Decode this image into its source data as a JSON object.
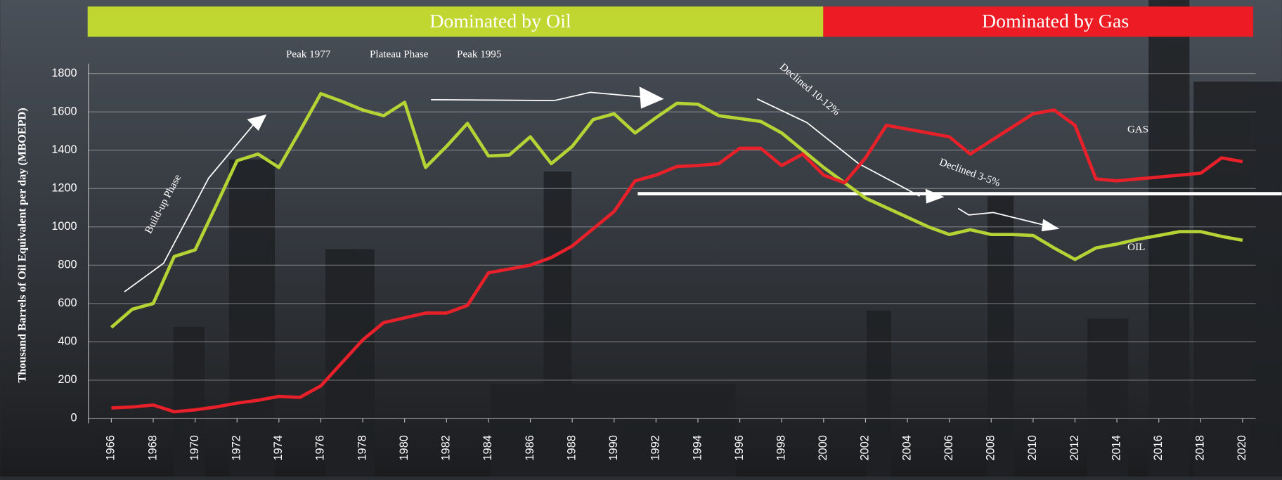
{
  "chart_data": {
    "type": "line",
    "banners": [
      "Dominated by Oil",
      "Dominated by Gas"
    ],
    "annotations": [
      "Peak 1977",
      "Plateau Phase",
      "Peak 1995",
      "Build-up Phase",
      "Declined 10-12%",
      "Declined 3-5%"
    ],
    "ylabel": "Thousand Barrels of Oil Equivalent per day (MBOEPD)",
    "x": [
      1966,
      1967,
      1968,
      1969,
      1970,
      1971,
      1972,
      1973,
      1974,
      1975,
      1976,
      1977,
      1978,
      1979,
      1980,
      1981,
      1982,
      1983,
      1984,
      1985,
      1986,
      1987,
      1988,
      1989,
      1990,
      1991,
      1992,
      1993,
      1994,
      1995,
      1996,
      1997,
      1998,
      1999,
      2000,
      2001,
      2002,
      2003,
      2004,
      2005,
      2006,
      2007,
      2008,
      2009,
      2010,
      2011,
      2012,
      2013,
      2014,
      2015,
      2016,
      2017,
      2018,
      2019,
      2020
    ],
    "xlim": [
      1966,
      2020
    ],
    "xticks": [
      1966,
      1968,
      1970,
      1972,
      1974,
      1976,
      1978,
      1980,
      1982,
      1984,
      1986,
      1988,
      1990,
      1992,
      1994,
      1996,
      1998,
      2000,
      2002,
      2004,
      2006,
      2008,
      2010,
      2012,
      2014,
      2016,
      2018,
      2020
    ],
    "ylim": [
      0,
      1800
    ],
    "yticks": [
      0,
      200,
      400,
      600,
      800,
      1000,
      1200,
      1400,
      1600,
      1800
    ],
    "grid": true,
    "series": [
      {
        "name": "OIL",
        "color": "#b5d334",
        "values": [
          475,
          570,
          600,
          845,
          880,
          1110,
          1345,
          1380,
          1310,
          1500,
          1695,
          1655,
          1610,
          1580,
          1650,
          1310,
          1420,
          1540,
          1370,
          1375,
          1470,
          1330,
          1420,
          1560,
          1590,
          1490,
          1570,
          1645,
          1640,
          1580,
          1565,
          1550,
          1490,
          1400,
          1310,
          1230,
          1150,
          1100,
          1050,
          1000,
          960,
          985,
          960,
          960,
          955,
          890,
          830,
          890,
          910,
          935,
          955,
          975,
          975,
          950,
          930
        ]
      },
      {
        "name": "GAS",
        "color": "#e8202a",
        "values": [
          55,
          60,
          70,
          35,
          45,
          60,
          80,
          95,
          115,
          110,
          170,
          290,
          410,
          500,
          525,
          550,
          550,
          590,
          760,
          780,
          800,
          840,
          900,
          990,
          1080,
          1240,
          1270,
          1315,
          1320,
          1330,
          1410,
          1410,
          1320,
          1380,
          1270,
          1230,
          1360,
          1530,
          1510,
          1490,
          1470,
          1380,
          1450,
          1520,
          1590,
          1610,
          1530,
          1250,
          1240,
          1250,
          1260,
          1270,
          1280,
          1360,
          1340
        ]
      }
    ]
  }
}
